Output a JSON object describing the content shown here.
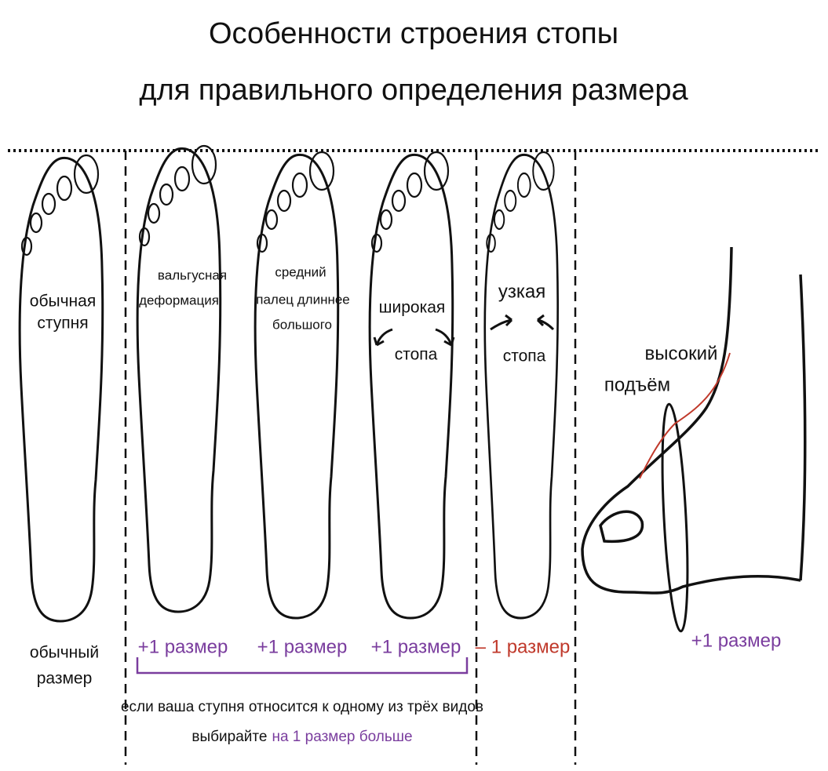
{
  "title": {
    "lines": [
      "Особенности строения стопы",
      "для правильного определения размера"
    ]
  },
  "feet": [
    {
      "label": [
        "обычная",
        "ступня"
      ],
      "size": [
        "обычный",
        "размер"
      ]
    },
    {
      "label": [
        "вальгусная",
        "деформация"
      ],
      "size": "+1 размер"
    },
    {
      "label": [
        "средний",
        "палец длиннее",
        "большого"
      ],
      "size": "+1 размер"
    },
    {
      "label": [
        "широкая",
        "стопа"
      ],
      "size": "+1 размер"
    },
    {
      "label": [
        "узкая",
        "стопа"
      ],
      "size": "– 1 размер"
    }
  ],
  "instep": {
    "label": [
      "высокий",
      "подъём"
    ],
    "size": "+1 размер"
  },
  "note": {
    "line1": "если ваша ступня относится к одному из трёх видов",
    "line2": "выбирайте",
    "line2_highlight": "на 1 размер больше"
  }
}
